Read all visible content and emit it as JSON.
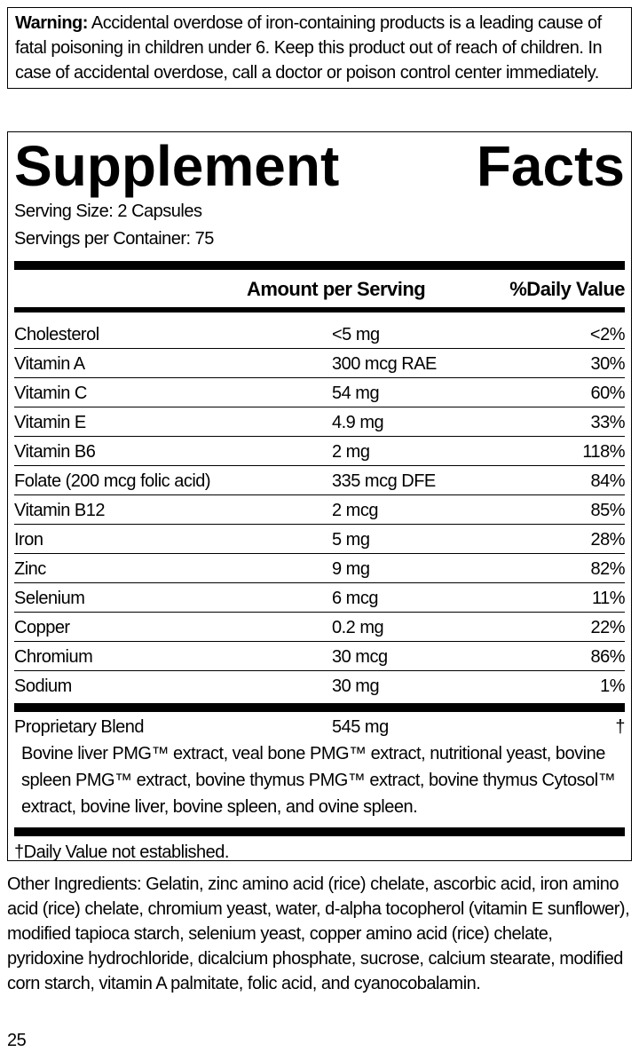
{
  "warning": {
    "label": "Warning:",
    "text": "Accidental overdose of iron-containing products is a leading cause of fatal poisoning in children under 6. Keep this product out of reach of children. In case of accidental overdose, call a doctor or poison control center immediately."
  },
  "facts": {
    "title": "Supplement Facts",
    "serving_size": "Serving Size: 2 Capsules",
    "servings_per_container": "Servings per Container: 75",
    "headers": [
      "Amount per Serving",
      "%Daily Value"
    ],
    "rows": [
      [
        "Cholesterol",
        "<5 mg",
        "<2%"
      ],
      [
        "Vitamin A",
        "300 mcg RAE",
        "30%"
      ],
      [
        "Vitamin C",
        "54 mg",
        "60%"
      ],
      [
        "Vitamin E",
        "4.9 mg",
        "33%"
      ],
      [
        "Vitamin B6",
        "2 mg",
        "118%"
      ],
      [
        "Folate (200 mcg folic acid)",
        "335 mcg DFE",
        "84%"
      ],
      [
        "Vitamin B12",
        "2 mcg",
        "85%"
      ],
      [
        "Iron",
        "5 mg",
        "28%"
      ],
      [
        "Zinc",
        "9 mg",
        "82%"
      ],
      [
        "Selenium",
        "6 mcg",
        "11%"
      ],
      [
        "Copper",
        "0.2 mg",
        "22%"
      ],
      [
        "Chromium",
        "30 mcg",
        "86%"
      ],
      [
        "Sodium",
        "30 mg",
        "1%"
      ]
    ],
    "blend": {
      "name": "Proprietary Blend",
      "amount": "545 mg",
      "daily_value": "†",
      "description": "Bovine liver PMG™ extract, veal bone PMG™ extract, nutritional yeast, bovine spleen PMG™ extract, bovine thymus PMG™ extract, bovine thymus Cytosol™ extract, bovine liver, bovine spleen, and ovine spleen."
    },
    "footnote": "†Daily Value not established."
  },
  "other_ingredients": "Other Ingredients: Gelatin, zinc amino acid (rice) chelate, ascorbic acid, iron amino acid (rice) chelate, chromium yeast, water, d-alpha tocopherol (vitamin E sunflower), modified tapioca starch, selenium yeast, copper amino acid (rice) chelate, pyridoxine hydrochloride, dicalcium phosphate, sucrose, calcium stearate, modified corn starch, vitamin A palmitate,  folic acid, and cyanocobalamin.",
  "page_number": "25"
}
